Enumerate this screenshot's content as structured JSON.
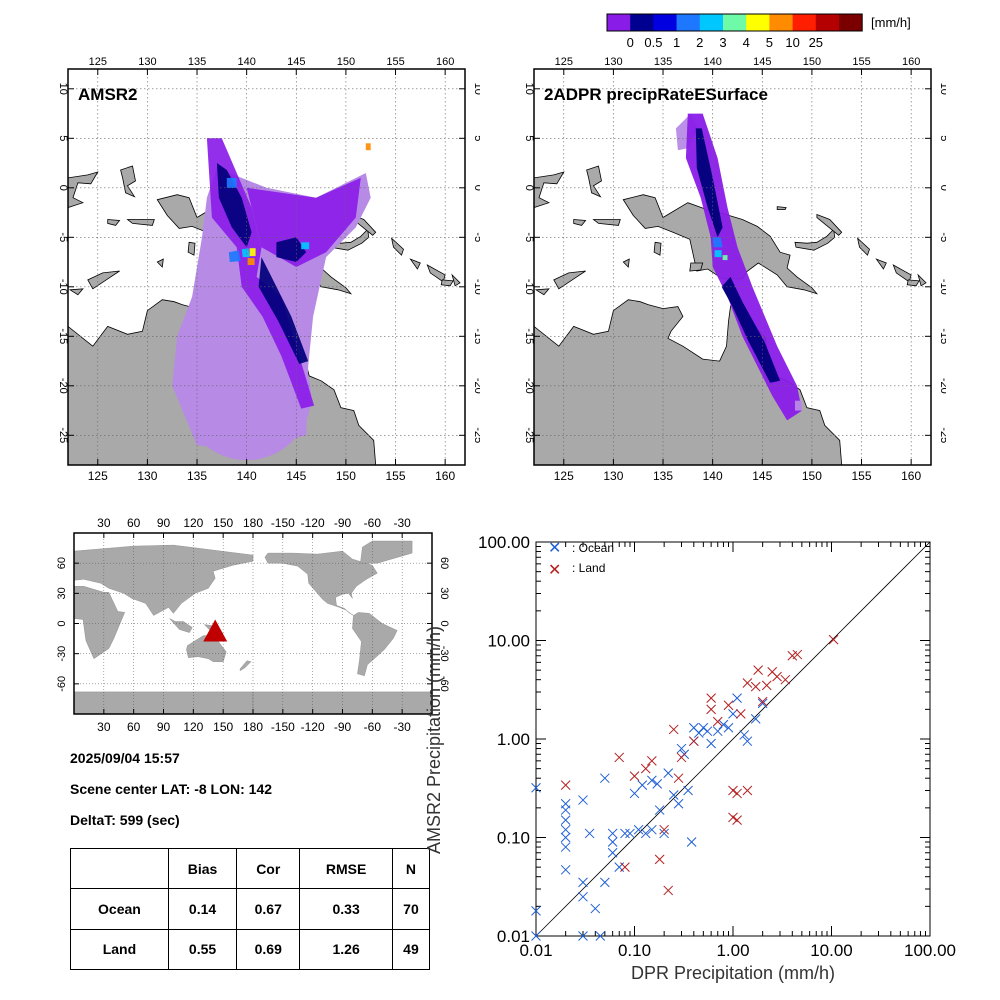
{
  "colorbar": {
    "unit": "[mm/h]",
    "labels": [
      "0",
      "0.5",
      "1",
      "2",
      "3",
      "4",
      "5",
      "10",
      "25"
    ],
    "colors": [
      "#8a1ce8",
      "#000090",
      "#0000e0",
      "#1e78ff",
      "#00c8ff",
      "#6efaa6",
      "#ffff00",
      "#ff8c00",
      "#ff1e00",
      "#b40000",
      "#7a0000"
    ]
  },
  "maps": {
    "lon_ticks": [
      "125",
      "130",
      "135",
      "140",
      "145",
      "150",
      "155",
      "160"
    ],
    "lat_ticks": [
      "10",
      "5",
      "0",
      "-5",
      "-10",
      "-15",
      "-20",
      "-25"
    ],
    "left_title": "AMSR2",
    "right_title": "2ADPR precipRateESurface"
  },
  "globe": {
    "lon_ticks": [
      "30",
      "60",
      "90",
      "120",
      "150",
      "180",
      "-150",
      "-120",
      "-90",
      "-60",
      "-30"
    ],
    "lat_ticks": [
      "60",
      "30",
      "0",
      "-30",
      "-60"
    ]
  },
  "info": {
    "datetime": "2025/09/04 15:57",
    "scene": "Scene center LAT: -8   LON: 142",
    "delta": "DeltaT:  599 (sec)"
  },
  "stats": {
    "headers": [
      "Bias",
      "Cor",
      "RMSE",
      "N"
    ],
    "rows": [
      {
        "label": "Ocean",
        "bias": "0.14",
        "cor": "0.67",
        "rmse": "0.33",
        "n": "70"
      },
      {
        "label": "Land",
        "bias": "0.55",
        "cor": "0.69",
        "rmse": "1.26",
        "n": "49"
      }
    ]
  },
  "chart_data": {
    "type": "scatter",
    "xlabel": "DPR Precipitation (mm/h)",
    "ylabel": "AMSR2 Precipitation (mm/h)",
    "xscale": "log",
    "yscale": "log",
    "xlim": [
      0.01,
      100
    ],
    "ylim": [
      0.01,
      100
    ],
    "x_ticks": [
      "0.01",
      "0.10",
      "1.00",
      "10.00",
      "100.00"
    ],
    "y_ticks": [
      "0.01",
      "0.10",
      "1.00",
      "10.00",
      "100.00"
    ],
    "legend": "top-left",
    "reference_line": "1:1",
    "series": [
      {
        "name": ": Ocean",
        "color": "#1f5fd6",
        "marker": "x",
        "points": [
          [
            0.01,
            0.32
          ],
          [
            0.01,
            0.018
          ],
          [
            0.01,
            0.01
          ],
          [
            0.02,
            0.22
          ],
          [
            0.02,
            0.19
          ],
          [
            0.02,
            0.15
          ],
          [
            0.02,
            0.12
          ],
          [
            0.02,
            0.1
          ],
          [
            0.02,
            0.08
          ],
          [
            0.02,
            0.047
          ],
          [
            0.03,
            0.24
          ],
          [
            0.03,
            0.035
          ],
          [
            0.03,
            0.025
          ],
          [
            0.03,
            0.01
          ],
          [
            0.035,
            0.11
          ],
          [
            0.04,
            0.019
          ],
          [
            0.045,
            0.01
          ],
          [
            0.05,
            0.4
          ],
          [
            0.05,
            0.035
          ],
          [
            0.06,
            0.11
          ],
          [
            0.06,
            0.09
          ],
          [
            0.06,
            0.07
          ],
          [
            0.07,
            0.05
          ],
          [
            0.08,
            0.11
          ],
          [
            0.09,
            0.11
          ],
          [
            0.1,
            0.28
          ],
          [
            0.11,
            0.12
          ],
          [
            0.12,
            0.34
          ],
          [
            0.13,
            0.11
          ],
          [
            0.15,
            0.38
          ],
          [
            0.15,
            0.12
          ],
          [
            0.17,
            0.35
          ],
          [
            0.18,
            0.19
          ],
          [
            0.2,
            0.11
          ],
          [
            0.22,
            0.45
          ],
          [
            0.25,
            0.27
          ],
          [
            0.28,
            0.22
          ],
          [
            0.3,
            0.8
          ],
          [
            0.32,
            0.7
          ],
          [
            0.35,
            0.3
          ],
          [
            0.38,
            0.09
          ],
          [
            0.4,
            1.3
          ],
          [
            0.4,
            0.95
          ],
          [
            0.45,
            1.15
          ],
          [
            0.5,
            1.3
          ],
          [
            0.55,
            1.2
          ],
          [
            0.6,
            0.9
          ],
          [
            0.7,
            1.2
          ],
          [
            0.8,
            1.4
          ],
          [
            0.9,
            1.3
          ],
          [
            1.0,
            1.8
          ],
          [
            1.1,
            2.6
          ],
          [
            1.3,
            1.1
          ],
          [
            1.4,
            0.95
          ],
          [
            1.7,
            1.6
          ],
          [
            2.0,
            2.3
          ]
        ]
      },
      {
        "name": ": Land",
        "color": "#b52020",
        "marker": "x",
        "points": [
          [
            0.02,
            0.34
          ],
          [
            0.07,
            0.65
          ],
          [
            0.08,
            0.05
          ],
          [
            0.1,
            0.42
          ],
          [
            0.13,
            0.5
          ],
          [
            0.15,
            0.6
          ],
          [
            0.18,
            0.06
          ],
          [
            0.2,
            0.12
          ],
          [
            0.22,
            0.029
          ],
          [
            0.25,
            1.25
          ],
          [
            0.28,
            0.4
          ],
          [
            0.3,
            0.65
          ],
          [
            0.4,
            0.95
          ],
          [
            0.6,
            2.6
          ],
          [
            0.6,
            2.0
          ],
          [
            0.7,
            1.5
          ],
          [
            0.9,
            2.2
          ],
          [
            1.0,
            0.3
          ],
          [
            1.0,
            0.16
          ],
          [
            1.1,
            0.15
          ],
          [
            1.1,
            0.28
          ],
          [
            1.2,
            1.8
          ],
          [
            1.4,
            3.7
          ],
          [
            1.4,
            0.3
          ],
          [
            1.7,
            3.4
          ],
          [
            1.8,
            5.0
          ],
          [
            2.0,
            2.4
          ],
          [
            2.2,
            3.5
          ],
          [
            2.5,
            4.8
          ],
          [
            2.8,
            4.3
          ],
          [
            3.4,
            4.0
          ],
          [
            4.0,
            7.0
          ],
          [
            4.5,
            7.2
          ],
          [
            10.5,
            10.2
          ]
        ]
      }
    ]
  }
}
